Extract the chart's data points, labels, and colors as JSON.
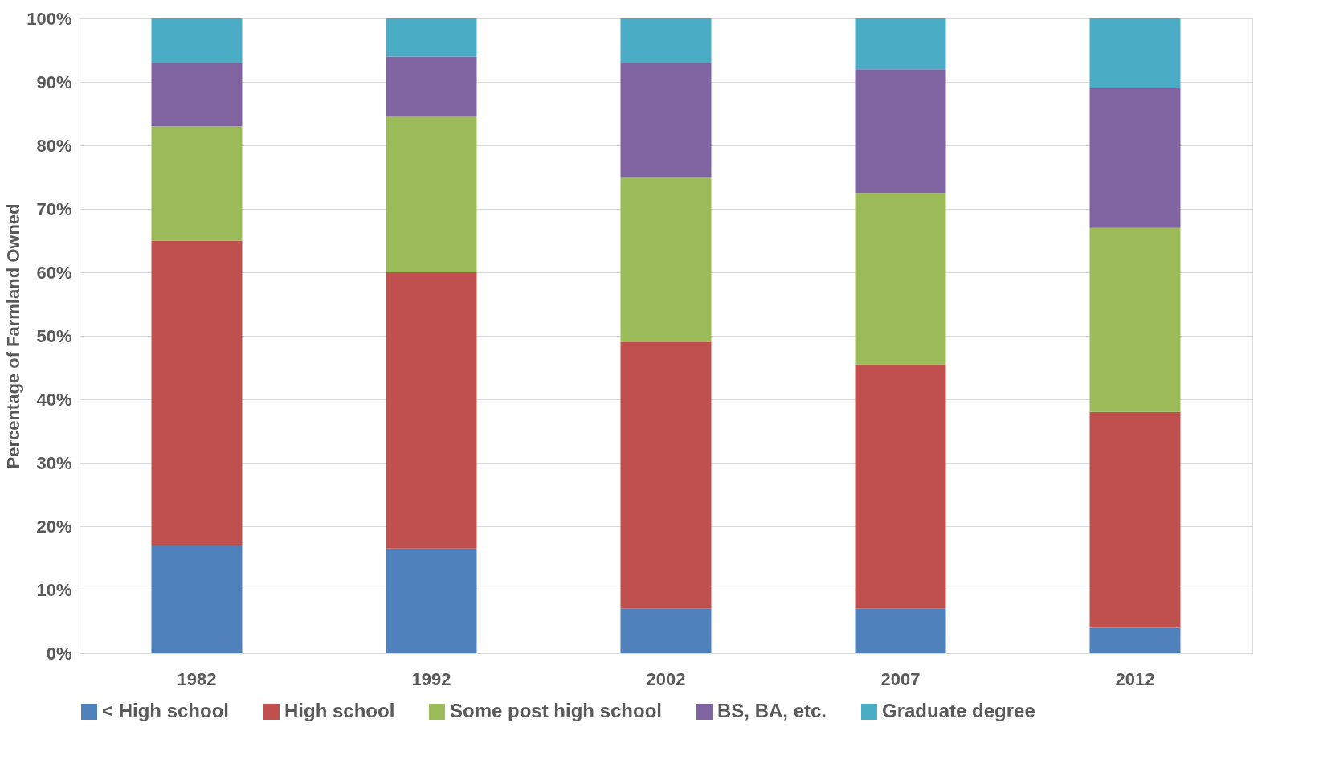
{
  "chart_data": {
    "type": "bar",
    "stacked": true,
    "ylabel": "Percentage of Farmland Owned",
    "categories": [
      "1982",
      "1992",
      "2002",
      "2007",
      "2012"
    ],
    "series": [
      {
        "name": "< High school",
        "color": "#4f81bd",
        "values": [
          17,
          16.5,
          7,
          7,
          4
        ]
      },
      {
        "name": "High school",
        "color": "#c0504d",
        "values": [
          48,
          43.5,
          42,
          38.5,
          34
        ]
      },
      {
        "name": "Some post high school",
        "color": "#9bbb59",
        "values": [
          18,
          24.5,
          26,
          27,
          29
        ]
      },
      {
        "name": "BS, BA, etc.",
        "color": "#8064a2",
        "values": [
          10,
          9.5,
          18,
          19.5,
          22
        ]
      },
      {
        "name": "Graduate degree",
        "color": "#4bacc6",
        "values": [
          7,
          6,
          7,
          8,
          11
        ]
      }
    ],
    "ylim": [
      0,
      100
    ],
    "yticks": [
      {
        "value": 0,
        "label": "0%"
      },
      {
        "value": 10,
        "label": "10%"
      },
      {
        "value": 20,
        "label": "20%"
      },
      {
        "value": 30,
        "label": "30%"
      },
      {
        "value": 40,
        "label": "40%"
      },
      {
        "value": 50,
        "label": "50%"
      },
      {
        "value": 60,
        "label": "60%"
      },
      {
        "value": 70,
        "label": "70%"
      },
      {
        "value": 80,
        "label": "80%"
      },
      {
        "value": 90,
        "label": "90%"
      },
      {
        "value": 100,
        "label": "100%"
      }
    ],
    "grid": "y",
    "legend": "bottom"
  }
}
